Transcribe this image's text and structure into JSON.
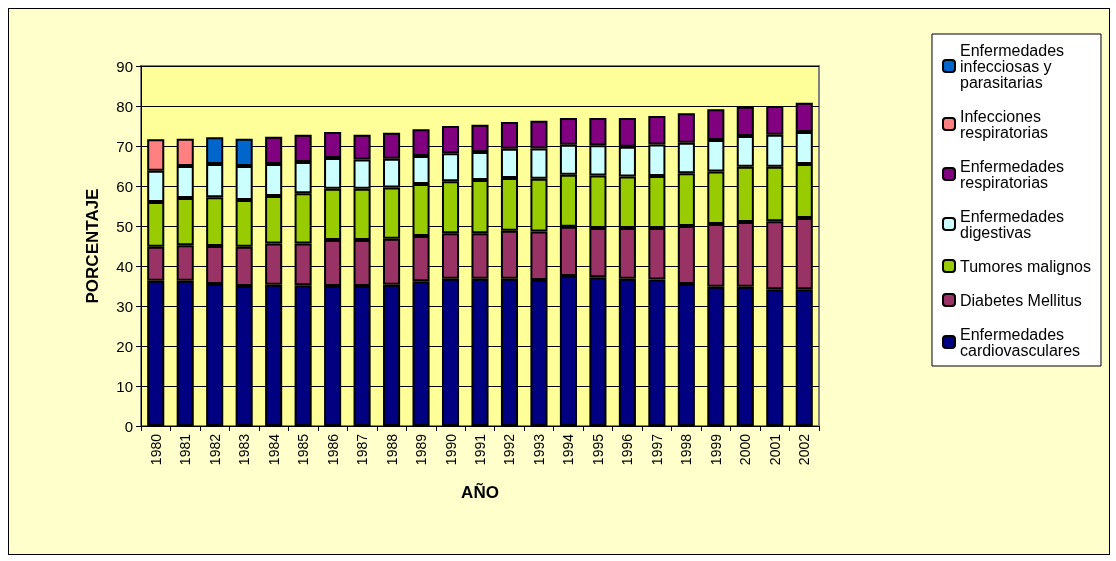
{
  "chart_data": {
    "type": "bar",
    "stacked": true,
    "xlabel": "AÑO",
    "ylabel": "PORCENTAJE",
    "categories": [
      "1980",
      "1981",
      "1982",
      "1983",
      "1984",
      "1985",
      "1986",
      "1987",
      "1988",
      "1989",
      "1990",
      "1991",
      "1992",
      "1993",
      "1994",
      "1995",
      "1996",
      "1997",
      "1998",
      "1999",
      "2000",
      "2001",
      "2002"
    ],
    "series": [
      {
        "name": "Enfermedades cardiovasculares",
        "color": "#000080",
        "values": [
          36.3,
          36.3,
          35.5,
          35,
          35.3,
          35.2,
          35,
          35,
          35.3,
          36.2,
          36.8,
          36.8,
          36.8,
          36.5,
          37.5,
          37.2,
          36.8,
          36.6,
          35.5,
          34.8,
          34.8,
          34.2,
          34.2
        ]
      },
      {
        "name": "Diabetes Mellitus",
        "color": "#993366",
        "values": [
          8.5,
          8.9,
          9.5,
          9.8,
          10.3,
          10.4,
          11.5,
          11.5,
          11.5,
          11.3,
          11.4,
          11.4,
          12.0,
          12.1,
          12.3,
          12.3,
          12.7,
          12.9,
          14.5,
          15.7,
          16.2,
          17.0,
          17.8
        ]
      },
      {
        "name": "Tumores malignos",
        "color": "#99cc00",
        "values": [
          11.2,
          11.8,
          12.2,
          11.7,
          11.9,
          12.6,
          12.8,
          12.8,
          12.8,
          13.0,
          13.0,
          13.3,
          13.2,
          13.2,
          13.0,
          13.1,
          12.9,
          13.0,
          13.2,
          13.1,
          13.8,
          13.6,
          13.5
        ]
      },
      {
        "name": "Enfermedades digestivas",
        "color": "#ccffff",
        "values": [
          7.8,
          8.0,
          8.3,
          8.5,
          8.0,
          7.8,
          7.7,
          7.3,
          7.2,
          7.0,
          7.0,
          7.0,
          7.3,
          7.6,
          7.5,
          7.6,
          7.4,
          7.9,
          7.6,
          7.9,
          7.7,
          8.0,
          8.0
        ]
      },
      {
        "name": "Enfermedades respiratorias",
        "color": "#800080",
        "values": [
          null,
          null,
          null,
          null,
          6.8,
          6.8,
          6.5,
          6.2,
          6.5,
          6.7,
          6.8,
          6.8,
          6.7,
          6.9,
          6.7,
          6.8,
          7.2,
          7.1,
          7.4,
          7.7,
          7.3,
          7.2,
          7.3
        ]
      },
      {
        "name": "Infecciones respiratorias",
        "color": "#ff8080",
        "values": [
          7.9,
          6.8,
          null,
          null,
          null,
          null,
          null,
          null,
          null,
          null,
          null,
          null,
          null,
          null,
          null,
          null,
          null,
          null,
          null,
          null,
          null,
          null,
          null
        ]
      },
      {
        "name": "Enfermedades infecciosas y parasitarias",
        "color": "#0066cc",
        "values": [
          null,
          null,
          6.7,
          6.8,
          null,
          null,
          null,
          null,
          null,
          null,
          null,
          null,
          null,
          null,
          null,
          null,
          null,
          null,
          null,
          null,
          null,
          null,
          null
        ]
      }
    ],
    "ylim": [
      0,
      90
    ],
    "yticks": [
      0,
      10,
      20,
      30,
      40,
      50,
      60,
      70,
      80,
      90
    ],
    "grid": "y",
    "legend": "right"
  }
}
